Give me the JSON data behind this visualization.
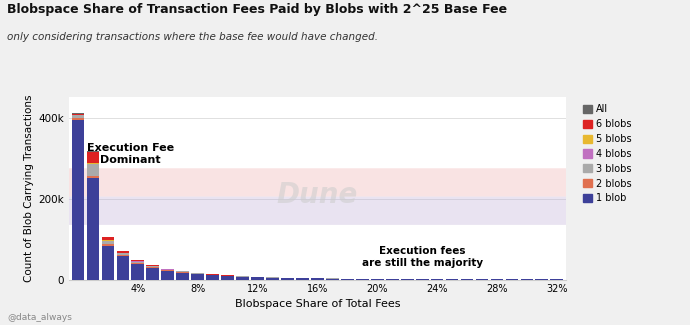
{
  "title": "Blobspace Share of Transaction Fees Paid by Blobs with 2^25 Base Fee",
  "subtitle": "only considering transactions where the base fee would have changed.",
  "xlabel": "Blobspace Share of Total Fees",
  "ylabel": "Count of Blob Carrying Transactions",
  "watermark": "Dune",
  "footer": "@data_always",
  "annotation1": "Execution Fee\nDominant",
  "annotation2": "Execution fees\nare still the majority",
  "colors": {
    "1 blob": "#3d4099",
    "2 blobs": "#e07050",
    "3 blobs": "#aaaaaa",
    "4 blobs": "#c070c0",
    "5 blobs": "#e8b830",
    "6 blobs": "#dd2222",
    "All": "#666666"
  },
  "ylim": [
    0,
    450000
  ],
  "background_color": "#f0f0f0",
  "plot_bg_color": "#ffffff",
  "grid_color": "#e0e0e0",
  "data": {
    "1 blob": [
      395000,
      250000,
      83000,
      57000,
      38000,
      28000,
      21000,
      17000,
      13000,
      10000,
      8000,
      6500,
      5500,
      4500,
      3800,
      3200,
      2700,
      2200,
      1900,
      1600,
      1300,
      1100,
      950,
      800,
      680,
      580,
      480,
      400,
      340,
      280,
      230,
      180,
      140
    ],
    "2 blobs": [
      4000,
      7000,
      4500,
      3800,
      2800,
      2200,
      1800,
      1400,
      1100,
      900,
      750,
      620,
      520,
      440,
      370,
      310,
      260,
      220,
      185,
      155,
      130,
      110,
      90,
      75,
      62,
      50,
      42,
      35,
      28,
      23,
      18,
      14,
      10
    ],
    "3 blobs": [
      7000,
      28000,
      7500,
      4500,
      3200,
      2400,
      1800,
      1400,
      1100,
      850,
      680,
      540,
      430,
      350,
      280,
      230,
      185,
      150,
      122,
      100,
      82,
      67,
      55,
      45,
      37,
      30,
      24,
      19,
      16,
      12,
      9,
      7,
      5
    ],
    "4 blobs": [
      800,
      1500,
      1200,
      900,
      700,
      520,
      380,
      280,
      210,
      160,
      120,
      95,
      75,
      60,
      48,
      38,
      30,
      24,
      19,
      15,
      12,
      10,
      8,
      6,
      5,
      4,
      3,
      3,
      2,
      2,
      1,
      1,
      1
    ],
    "5 blobs": [
      400,
      900,
      700,
      520,
      380,
      280,
      200,
      150,
      110,
      85,
      65,
      50,
      40,
      32,
      25,
      20,
      16,
      13,
      10,
      8,
      6,
      5,
      4,
      3,
      3,
      2,
      2,
      1,
      1,
      1,
      1,
      1,
      1
    ],
    "6 blobs": [
      2500,
      28000,
      8500,
      3800,
      2300,
      1800,
      1400,
      1100,
      900,
      720,
      600,
      500,
      420,
      350,
      295,
      248,
      208,
      175,
      148,
      124,
      104,
      87,
      73,
      61,
      51,
      43,
      36,
      30,
      25,
      21,
      17,
      14,
      11
    ],
    "All": [
      900,
      2500,
      900,
      450,
      280,
      190,
      140,
      105,
      82,
      65,
      52,
      42,
      34,
      28,
      23,
      19,
      16,
      13,
      11,
      9,
      7,
      6,
      5,
      4,
      3,
      3,
      2,
      2,
      2,
      1,
      1,
      1,
      1
    ]
  }
}
